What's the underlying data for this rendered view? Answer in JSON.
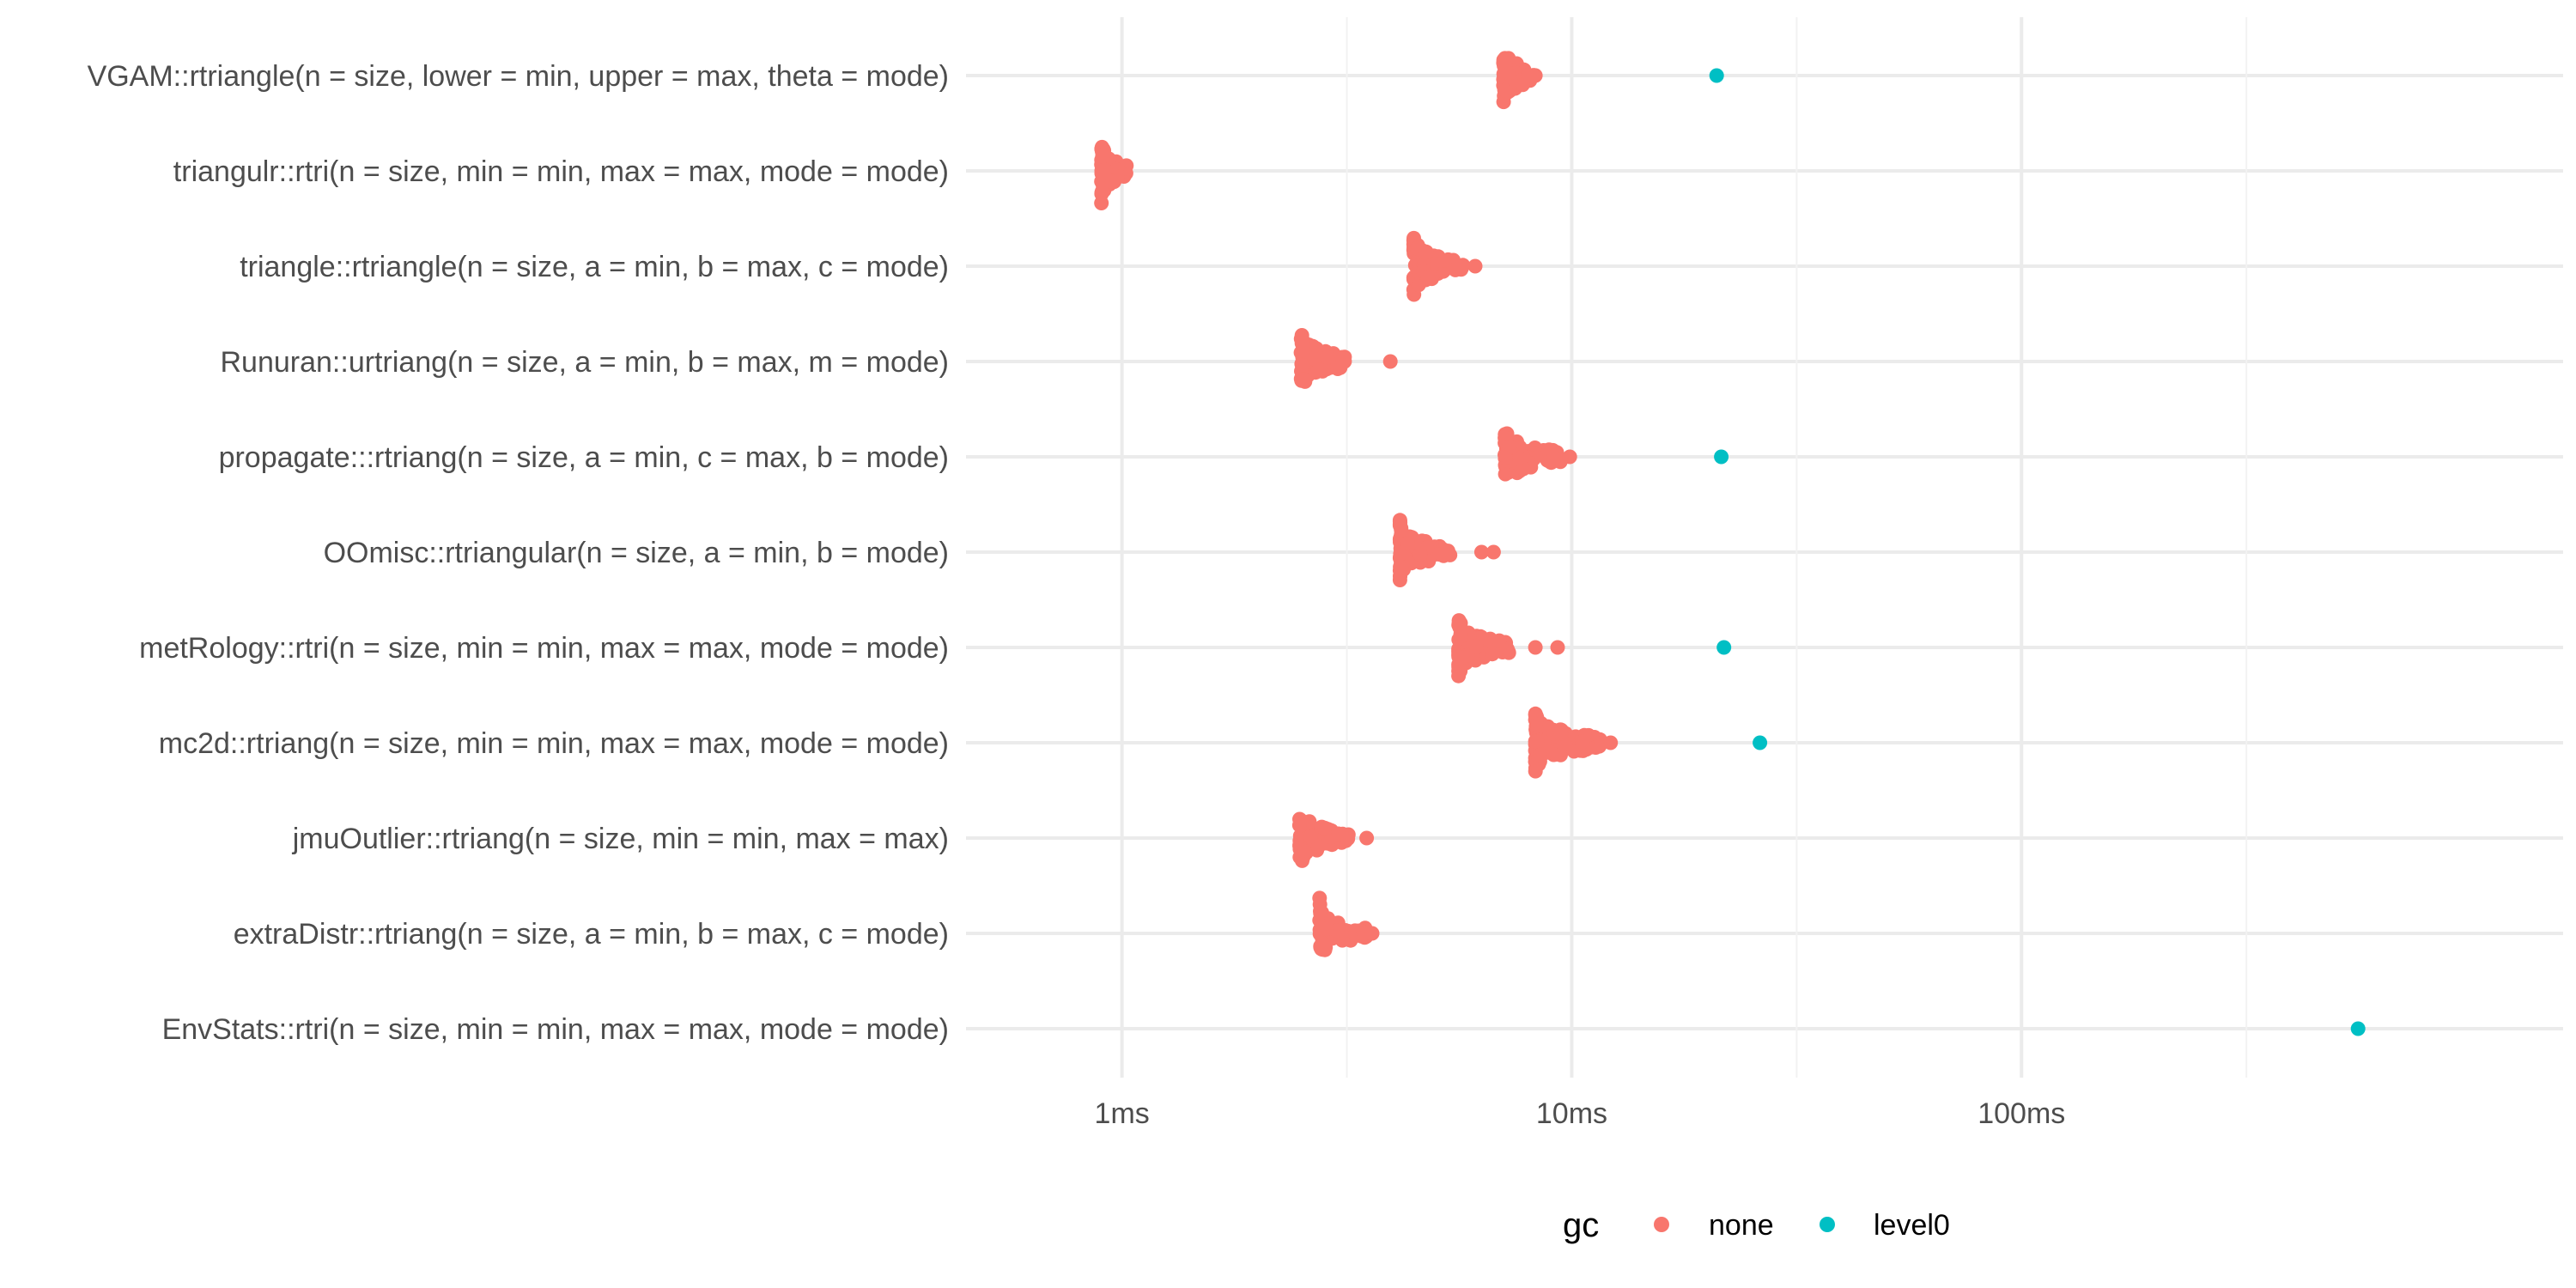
{
  "chart_data": {
    "type": "scatter",
    "x_scale": "log10",
    "x_range_ms": [
      0.45,
      1600
    ],
    "x_ticks": [
      {
        "value_ms": 1,
        "label": "1ms"
      },
      {
        "value_ms": 10,
        "label": "10ms"
      },
      {
        "value_ms": 100,
        "label": "100ms"
      }
    ],
    "x_minor_ticks_ms": [
      3.1623,
      31.623,
      316.23
    ],
    "grid": true,
    "xlabel": "",
    "ylabel": "",
    "title": "",
    "legend": {
      "title": "gc",
      "position": "bottom",
      "entries": [
        {
          "label": "none",
          "color": "#F8766D"
        },
        {
          "label": "level0",
          "color": "#00BFC4"
        }
      ]
    },
    "categories": [
      "VGAM::rtriangle(n = size, lower = min, upper = max, theta = mode)",
      "triangulr::rtri(n = size, min = min, max = max, mode = mode)",
      "triangle::rtriangle(n = size, a = min, b = max, c = mode)",
      "Runuran::urtriang(n = size, a = min, b = max, m = mode)",
      "propagate:::rtriang(n = size, a = min, c = max, b = mode)",
      "OOmisc::rtriangular(n = size, a = min, b = mode)",
      "metRology::rtri(n = size, min = min, max = max, mode = mode)",
      "mc2d::rtriang(n = size, min = min, max = max, mode = mode)",
      "jmuOutlier::rtriang(n = size, min = min, max = max)",
      "extraDistr::rtriang(n = size, a = min, b = max, c = mode)",
      "EnvStats::rtri(n = size, min = min, max = max, mode = mode)"
    ],
    "series": [
      {
        "name": "none",
        "color": "#F8766D",
        "groups": [
          {
            "category": "VGAM::rtriangle(n = size, lower = min, upper = max, theta = mode)",
            "median_ms": 7.3,
            "min_ms": 7.05,
            "max_ms": 8.3,
            "n": 60,
            "outliers_ms": [
              8.0,
              8.3
            ]
          },
          {
            "category": "triangulr::rtri(n = size, min = min, max = max, mode = mode)",
            "median_ms": 0.95,
            "min_ms": 0.9,
            "max_ms": 1.03,
            "n": 90,
            "outliers_ms": []
          },
          {
            "category": "triangle::rtriangle(n = size, a = min, b = max, c = mode)",
            "median_ms": 4.6,
            "min_ms": 4.45,
            "max_ms": 6.1,
            "n": 60,
            "outliers_ms": [
              5.6,
              6.1
            ]
          },
          {
            "category": "Runuran::urtriang(n = size, a = min, b = max, m = mode)",
            "median_ms": 2.55,
            "min_ms": 2.5,
            "max_ms": 3.95,
            "n": 70,
            "outliers_ms": [
              3.1,
              3.95
            ]
          },
          {
            "category": "propagate:::rtriang(n = size, a = min, c = max, b = mode)",
            "median_ms": 7.6,
            "min_ms": 7.1,
            "max_ms": 9.9,
            "n": 90,
            "outliers_ms": [
              9.1,
              9.9
            ]
          },
          {
            "category": "OOmisc::rtriangular(n = size, a = min, b = mode)",
            "median_ms": 4.3,
            "min_ms": 4.15,
            "max_ms": 6.7,
            "n": 80,
            "outliers_ms": [
              6.3,
              6.7
            ]
          },
          {
            "category": "metRology::rtri(n = size, min = min, max = max, mode = mode)",
            "median_ms": 5.9,
            "min_ms": 5.6,
            "max_ms": 9.3,
            "n": 100,
            "outliers_ms": [
              8.3,
              9.3
            ]
          },
          {
            "category": "mc2d::rtriang(n = size, min = min, max = max, mode = mode)",
            "median_ms": 9.5,
            "min_ms": 8.3,
            "max_ms": 12.2,
            "n": 100,
            "outliers_ms": [
              11.7,
              12.2
            ]
          },
          {
            "category": "jmuOutlier::rtriang(n = size, min = min, max = max)",
            "median_ms": 2.55,
            "min_ms": 2.48,
            "max_ms": 3.5,
            "n": 60,
            "outliers_ms": [
              3.5
            ]
          },
          {
            "category": "extraDistr::rtriang(n = size, a = min, b = max, c = mode)",
            "median_ms": 2.8,
            "min_ms": 2.75,
            "max_ms": 3.6,
            "n": 60,
            "outliers_ms": [
              3.3,
              3.45,
              3.6
            ]
          },
          {
            "category": "EnvStats::rtri(n = size, min = min, max = max, mode = mode)",
            "median_ms": null,
            "min_ms": null,
            "max_ms": null,
            "n": 0,
            "outliers_ms": []
          }
        ]
      },
      {
        "name": "level0",
        "color": "#00BFC4",
        "points": [
          {
            "category": "VGAM::rtriangle(n = size, lower = min, upper = max, theta = mode)",
            "x_ms": 21
          },
          {
            "category": "propagate:::rtriang(n = size, a = min, c = max, b = mode)",
            "x_ms": 21.5
          },
          {
            "category": "metRology::rtri(n = size, min = min, max = max, mode = mode)",
            "x_ms": 21.8
          },
          {
            "category": "mc2d::rtriang(n = size, min = min, max = max, mode = mode)",
            "x_ms": 26.2
          },
          {
            "category": "EnvStats::rtri(n = size, min = min, max = max, mode = mode)",
            "x_ms": 560
          }
        ]
      }
    ]
  }
}
